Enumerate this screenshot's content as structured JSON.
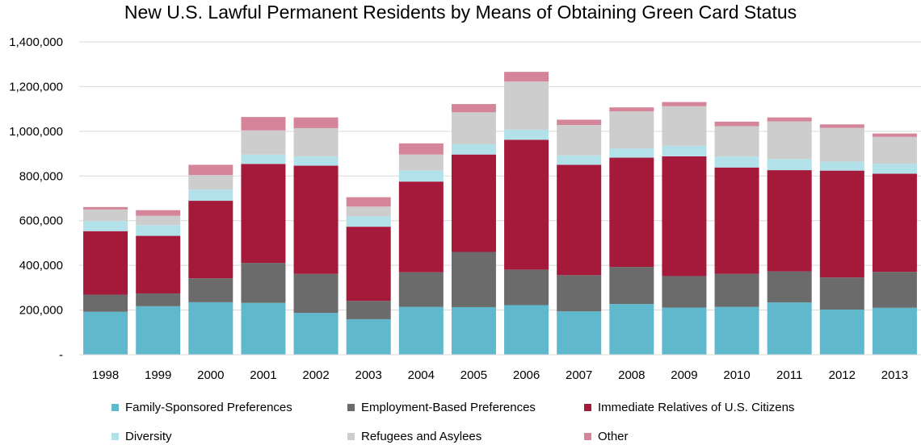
{
  "chart_data": {
    "type": "bar",
    "stacked": true,
    "title": "New U.S. Lawful Permanent Residents by Means of Obtaining Green Card Status",
    "xlabel": "",
    "ylabel": "",
    "ylim": [
      0,
      1400000
    ],
    "yticks": [
      0,
      200000,
      400000,
      600000,
      800000,
      1000000,
      1200000,
      1400000
    ],
    "ytick_labels": [
      "-",
      "200,000",
      "400,000",
      "600,000",
      "800,000",
      "1,000,000",
      "1,200,000",
      "1,400,000"
    ],
    "grid": true,
    "legend_position": "bottom",
    "categories": [
      "1998",
      "1999",
      "2000",
      "2001",
      "2002",
      "2003",
      "2004",
      "2005",
      "2006",
      "2007",
      "2008",
      "2009",
      "2010",
      "2011",
      "2012",
      "2013"
    ],
    "series": [
      {
        "name": "Family-Sponsored Preferences",
        "color": "#5fb8cc",
        "values": [
          192000,
          217000,
          235000,
          232000,
          187000,
          159000,
          214000,
          213000,
          222000,
          194000,
          227000,
          211000,
          214000,
          234000,
          202000,
          210000
        ]
      },
      {
        "name": "Employment-Based Preferences",
        "color": "#6b6b6b",
        "values": [
          77000,
          57000,
          107000,
          179000,
          175000,
          82000,
          155000,
          247000,
          159000,
          162000,
          166000,
          141000,
          148000,
          139000,
          144000,
          161000
        ]
      },
      {
        "name": "Immediate Relatives of U.S. Citizens",
        "color": "#a5193a",
        "values": [
          284000,
          258000,
          347000,
          443000,
          484000,
          332000,
          406000,
          436000,
          581000,
          494000,
          489000,
          536000,
          476000,
          453000,
          478000,
          439000
        ]
      },
      {
        "name": "Diversity",
        "color": "#b2e1ea",
        "values": [
          45000,
          48000,
          50000,
          42000,
          42000,
          46000,
          50000,
          46000,
          45000,
          42000,
          41000,
          47000,
          49000,
          50000,
          40000,
          45000
        ]
      },
      {
        "name": "Refugees and Asylees",
        "color": "#cdcdcd",
        "values": [
          52000,
          42000,
          65000,
          108000,
          126000,
          44000,
          71000,
          143000,
          216000,
          136000,
          166000,
          177000,
          136000,
          168000,
          151000,
          120000
        ]
      },
      {
        "name": "Other",
        "color": "#d5859a",
        "values": [
          11000,
          25000,
          46000,
          60000,
          48000,
          42000,
          50000,
          37000,
          43000,
          24000,
          18000,
          19000,
          20000,
          18000,
          16000,
          15000
        ]
      }
    ]
  }
}
